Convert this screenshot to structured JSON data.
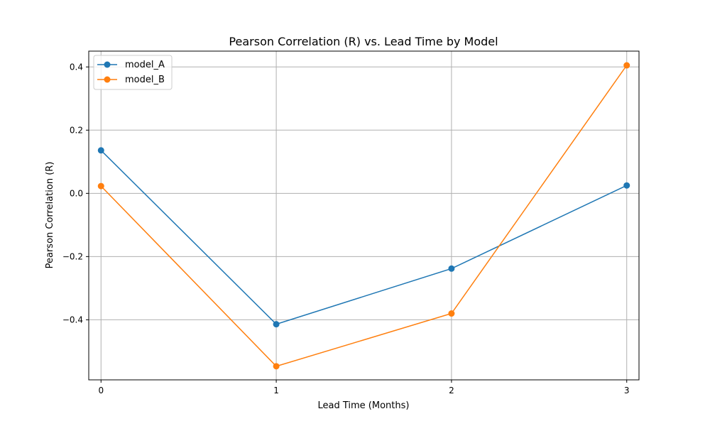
{
  "chart_data": {
    "type": "line",
    "title": "Pearson Correlation (R) vs. Lead Time by Model",
    "xlabel": "Lead Time (Months)",
    "ylabel": "Pearson Correlation (R)",
    "x": [
      0,
      1,
      2,
      3
    ],
    "xlim": [
      -0.07,
      3.07
    ],
    "ylim": [
      -0.59,
      0.45
    ],
    "x_ticks": [
      0,
      1,
      2,
      3
    ],
    "x_tick_labels": [
      "0",
      "1",
      "2",
      "3"
    ],
    "y_ticks": [
      -0.4,
      -0.2,
      0.0,
      0.2,
      0.4
    ],
    "y_tick_labels": [
      "−0.4",
      "−0.2",
      "0.0",
      "0.2",
      "0.4"
    ],
    "grid": true,
    "legend_position": "top-left",
    "series": [
      {
        "name": "model_A",
        "color": "#1f77b4",
        "values": [
          0.136,
          -0.414,
          -0.238,
          0.025
        ]
      },
      {
        "name": "model_B",
        "color": "#ff7f0e",
        "values": [
          0.023,
          -0.547,
          -0.38,
          0.405
        ]
      }
    ]
  }
}
